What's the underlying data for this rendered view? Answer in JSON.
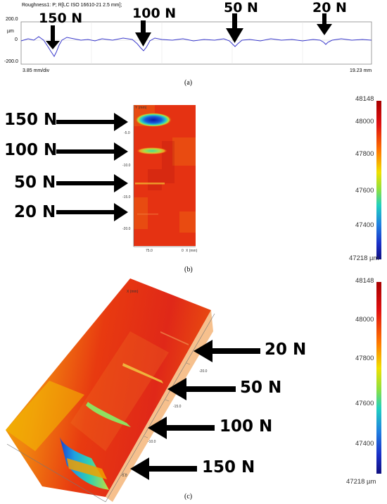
{
  "panel_a": {
    "header": "Roughness1: P; R[LC ISO 16610-21 2.5 mm];",
    "y_unit": "µm",
    "y_ticks": [
      "200.0",
      "0",
      "-200.0"
    ],
    "x_left": "3.85 mm/div",
    "x_right": "19.23 mm",
    "loads": [
      "150 N",
      "100 N",
      "50 N",
      "20 N"
    ],
    "caption": "(a)"
  },
  "panel_b": {
    "loads": [
      "150 N",
      "100 N",
      "50 N",
      "20 N"
    ],
    "axis_y_title": "Y (mm)",
    "y_ticks": [
      "-5.0",
      "-10.0",
      "-15.0",
      "-20.0"
    ],
    "x_ticks": [
      "75.0",
      "0"
    ],
    "x_unit": "X (mm)",
    "colorbar_ticks": [
      "48148",
      "48000",
      "47800",
      "47600",
      "47400"
    ],
    "colorbar_min": "47218 µm",
    "caption": "(b)"
  },
  "panel_c": {
    "loads": [
      "20 N",
      "50 N",
      "100 N",
      "150 N"
    ],
    "axis_title": "X (mm)",
    "axis_ticks": [
      "-20.0",
      "-15.0",
      "-10.0",
      "-5.0"
    ],
    "colorbar_ticks": [
      "48148",
      "48000",
      "47800",
      "47600",
      "47400"
    ],
    "colorbar_min": "47218 µm",
    "caption": "(c)"
  },
  "colors": {
    "profile_line": "#3a3acc",
    "arrow": "#000000",
    "cmap_high": "#b40000",
    "cmap_low": "#1a1a9a"
  }
}
